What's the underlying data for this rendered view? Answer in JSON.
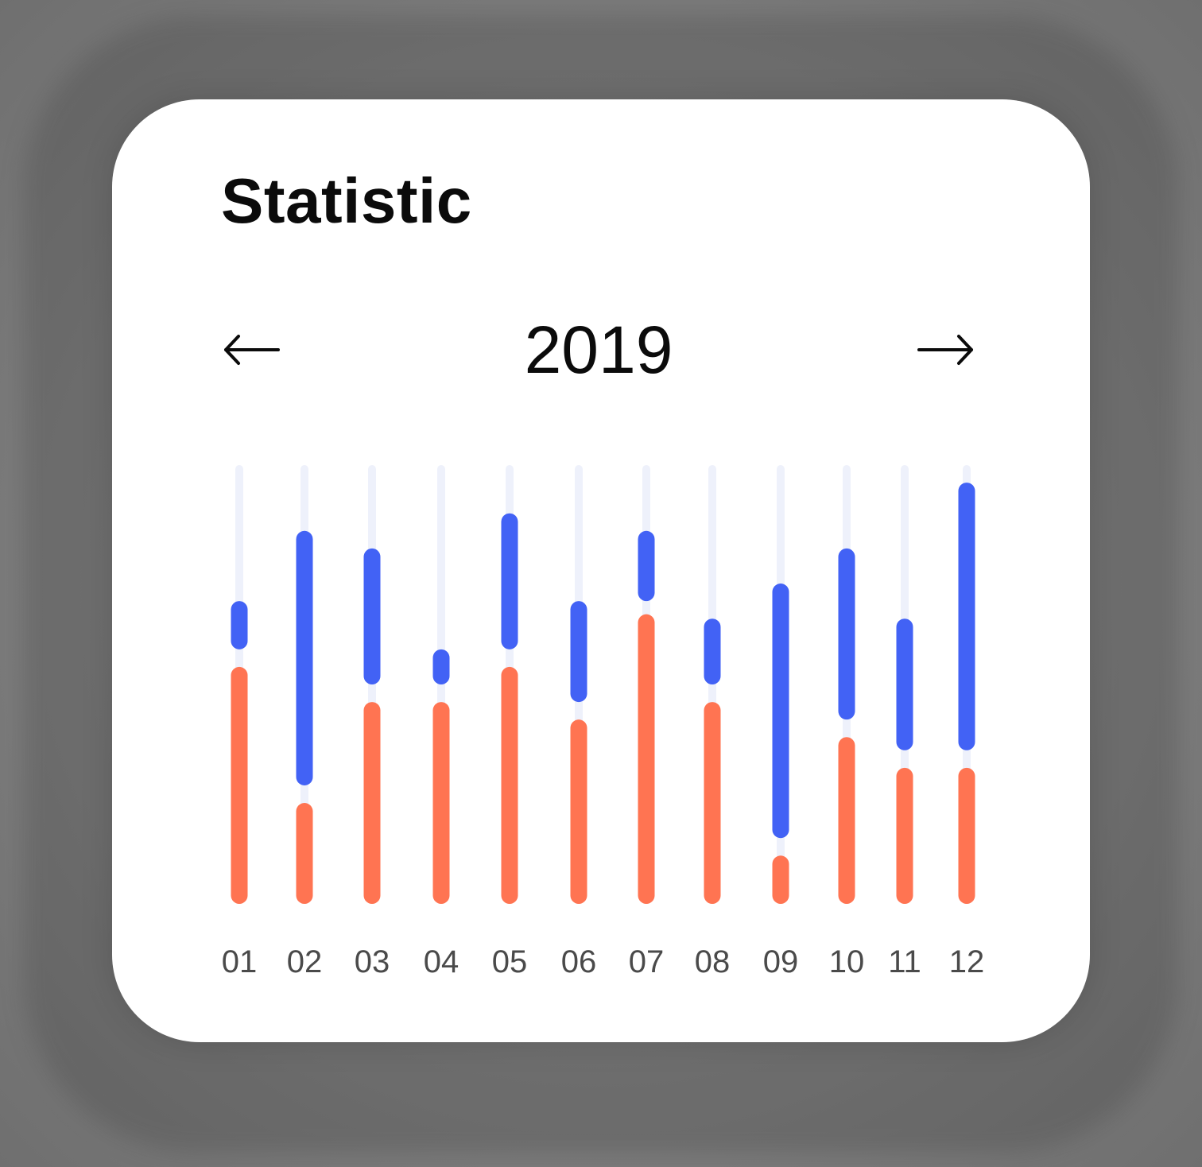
{
  "card": {
    "title": "Statistic"
  },
  "nav": {
    "year": "2019",
    "prev_icon": "arrow-left-icon",
    "next_icon": "arrow-right-icon"
  },
  "colors": {
    "track": "#eef1fb",
    "series_a": "#ff7452",
    "series_b": "#4262f5",
    "text": "#0b0b0b",
    "label": "#4a4a4a"
  },
  "chart_data": {
    "type": "bar",
    "categories": [
      "01",
      "02",
      "03",
      "04",
      "05",
      "06",
      "07",
      "08",
      "09",
      "10",
      "11",
      "12"
    ],
    "ylim": [
      0,
      100
    ],
    "series": [
      {
        "values": [
          [
            0,
            54
          ],
          [
            0,
            23
          ],
          [
            0,
            46
          ],
          [
            0,
            46
          ],
          [
            0,
            54
          ],
          [
            0,
            42
          ],
          [
            0,
            66
          ],
          [
            0,
            46
          ],
          [
            0,
            11
          ],
          [
            0,
            38
          ],
          [
            0,
            31
          ],
          [
            0,
            31
          ]
        ]
      },
      {
        "values": [
          [
            58,
            69
          ],
          [
            27,
            85
          ],
          [
            50,
            81
          ],
          [
            50,
            58
          ],
          [
            58,
            89
          ],
          [
            46,
            69
          ],
          [
            69,
            85
          ],
          [
            50,
            65
          ],
          [
            15,
            73
          ],
          [
            42,
            81
          ],
          [
            35,
            65
          ],
          [
            35,
            96
          ]
        ]
      }
    ],
    "title": "",
    "xlabel": "",
    "ylabel": ""
  }
}
